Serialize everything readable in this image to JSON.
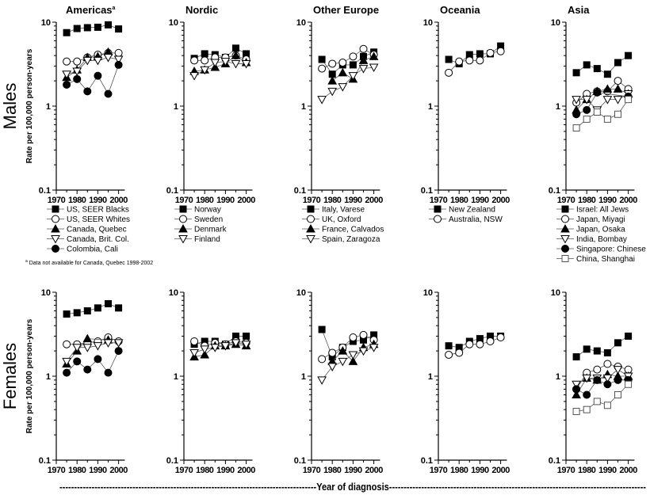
{
  "chart_data": {
    "type": "line",
    "xlabel": "Year of diagnosis",
    "ylabel": "Rate per 100,000 person-years",
    "yscale": "log",
    "ylim": [
      0.1,
      10
    ],
    "yticks": [
      "10",
      "1",
      "0.1"
    ],
    "xlim": [
      1970,
      2000
    ],
    "xticks": [
      "1970",
      "1980",
      "1990",
      "2000"
    ],
    "x": [
      1975,
      1980,
      1985,
      1990,
      1995,
      2000
    ],
    "rows": [
      "Males",
      "Females"
    ],
    "footnote": "a Data not available for Canada, Quebec 1998-2002",
    "panels": [
      {
        "title": "Americas",
        "title_sup": "a",
        "series": [
          {
            "name": "US, SEER Blacks",
            "marker": "square-filled",
            "males": [
              7.5,
              8.4,
              8.6,
              8.7,
              9.3,
              8.3
            ],
            "females": [
              5.5,
              5.7,
              6.0,
              6.5,
              7.3,
              6.5
            ]
          },
          {
            "name": "US, SEER Whites",
            "marker": "circle-open",
            "males": [
              3.4,
              3.4,
              3.8,
              4.1,
              4.3,
              4.3
            ],
            "females": [
              2.4,
              2.4,
              2.5,
              2.6,
              2.9,
              2.6
            ]
          },
          {
            "name": "Canada, Quebec",
            "marker": "triangle-filled",
            "males": [
              2.2,
              2.7,
              3.8,
              3.9,
              4.4,
              null
            ],
            "females": [
              1.4,
              2.0,
              2.8,
              null,
              2.7,
              null
            ]
          },
          {
            "name": "Canada, Brit. Col.",
            "marker": "triangle-down-open",
            "males": [
              2.4,
              2.6,
              3.5,
              3.5,
              3.8,
              3.6
            ],
            "females": [
              1.5,
              2.2,
              2.2,
              2.3,
              2.5,
              2.5
            ]
          },
          {
            "name": "Colombia, Cali",
            "marker": "circle-filled",
            "males": [
              1.8,
              2.1,
              1.5,
              2.3,
              1.4,
              3.1
            ],
            "females": [
              1.1,
              1.5,
              1.2,
              1.6,
              1.1,
              2.0
            ]
          }
        ]
      },
      {
        "title": "Nordic",
        "series": [
          {
            "name": "Norway",
            "marker": "square-filled",
            "males": [
              3.7,
              4.2,
              4.1,
              3.8,
              4.9,
              4.2
            ],
            "females": [
              2.4,
              2.6,
              2.6,
              2.4,
              3.0,
              3.0
            ]
          },
          {
            "name": "Sweden",
            "marker": "circle-open",
            "males": [
              3.5,
              3.5,
              3.8,
              3.8,
              4.0,
              3.6
            ],
            "females": [
              2.6,
              2.3,
              2.5,
              2.4,
              2.6,
              2.5
            ]
          },
          {
            "name": "Denmark",
            "marker": "triangle-filled",
            "males": [
              2.6,
              2.7,
              2.9,
              3.2,
              4.0,
              3.3
            ],
            "females": [
              1.7,
              1.8,
              2.3,
              2.3,
              2.4,
              2.3
            ]
          },
          {
            "name": "Finland",
            "marker": "triangle-down-open",
            "males": [
              2.3,
              2.7,
              3.3,
              3.4,
              3.2,
              3.2
            ],
            "females": [
              1.9,
              2.1,
              2.2,
              2.3,
              2.5,
              2.4
            ]
          }
        ]
      },
      {
        "title": "Other Europe",
        "series": [
          {
            "name": "Italy, Varese",
            "marker": "square-filled",
            "males": [
              3.6,
              2.4,
              3.1,
              3.1,
              3.9,
              4.4
            ],
            "females": [
              3.6,
              1.7,
              2.2,
              2.6,
              2.7,
              3.1
            ]
          },
          {
            "name": "UK, Oxford",
            "marker": "circle-open",
            "males": [
              2.8,
              3.2,
              3.3,
              3.9,
              4.8,
              4.1
            ],
            "females": [
              1.6,
              1.9,
              2.2,
              2.9,
              3.1,
              2.7
            ]
          },
          {
            "name": "France, Calvados",
            "marker": "triangle-filled",
            "males": [
              null,
              2.0,
              2.5,
              2.1,
              3.5,
              3.9
            ],
            "females": [
              null,
              1.5,
              2.0,
              1.5,
              2.2,
              2.4
            ]
          },
          {
            "name": "Spain, Zaragoza",
            "marker": "triangle-down-open",
            "males": [
              1.2,
              1.5,
              1.7,
              2.3,
              2.8,
              2.9
            ],
            "females": [
              0.9,
              1.3,
              1.5,
              1.8,
              2.0,
              2.2
            ]
          }
        ]
      },
      {
        "title": "Oceania",
        "series": [
          {
            "name": "New Zealand",
            "marker": "square-filled",
            "males": [
              3.6,
              3.2,
              4.1,
              4.2,
              4.2,
              5.2
            ],
            "females": [
              2.3,
              2.2,
              2.6,
              2.8,
              3.0,
              3.0
            ]
          },
          {
            "name": "Australia, NSW",
            "marker": "circle-open",
            "males": [
              2.5,
              3.4,
              3.5,
              3.5,
              4.3,
              4.5
            ],
            "females": [
              1.8,
              1.9,
              2.4,
              2.4,
              2.6,
              2.9
            ]
          }
        ]
      },
      {
        "title": "Asia",
        "series": [
          {
            "name": "Israel: All Jews",
            "marker": "square-filled",
            "males": [
              2.5,
              3.1,
              2.8,
              2.4,
              3.3,
              4.0
            ],
            "females": [
              1.7,
              2.1,
              2.0,
              1.9,
              2.5,
              3.0
            ]
          },
          {
            "name": "Japan, Miyagi",
            "marker": "circle-open",
            "males": [
              1.1,
              1.4,
              1.5,
              1.5,
              2.0,
              1.6
            ],
            "females": [
              0.7,
              1.1,
              1.2,
              1.4,
              1.3,
              1.2
            ]
          },
          {
            "name": "Japan, Osaka",
            "marker": "triangle-filled",
            "males": [
              0.9,
              1.2,
              1.5,
              1.6,
              1.6,
              1.4
            ],
            "females": [
              0.6,
              0.95,
              0.9,
              1.05,
              1.0,
              1.0
            ]
          },
          {
            "name": "India, Bombay",
            "marker": "triangle-down-open",
            "males": [
              1.2,
              1.2,
              0.9,
              1.2,
              1.2,
              1.4
            ],
            "females": [
              0.8,
              0.95,
              0.95,
              0.95,
              1.2,
              1.0
            ]
          },
          {
            "name": "Singapore: Chinese",
            "marker": "circle-filled",
            "males": [
              0.8,
              0.9,
              1.45,
              null,
              null,
              1.3
            ],
            "females": [
              0.7,
              0.6,
              0.9,
              0.8,
              0.9,
              0.9
            ]
          },
          {
            "name": "China, Shanghai",
            "marker": "square-open",
            "males": [
              0.55,
              0.7,
              0.85,
              0.7,
              0.8,
              1.2
            ],
            "females": [
              0.38,
              0.4,
              0.5,
              0.45,
              0.6,
              0.8
            ]
          }
        ]
      }
    ]
  }
}
